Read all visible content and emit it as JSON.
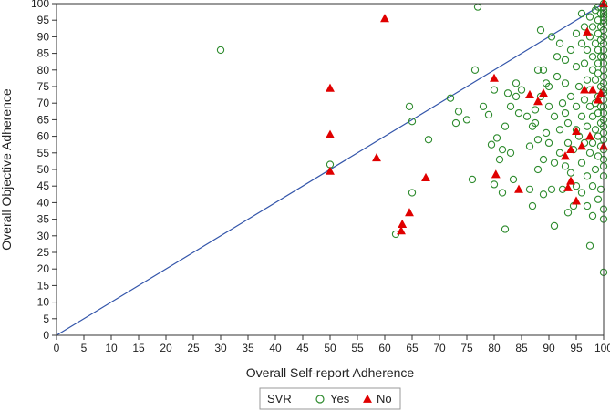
{
  "chart_data": {
    "type": "scatter",
    "xlabel": "Overall Self-report Adherence",
    "ylabel": "Overall Objective Adherence",
    "xlim": [
      0,
      100
    ],
    "ylim": [
      0,
      100
    ],
    "x_ticks": [
      "0",
      "5",
      "10",
      "15",
      "20",
      "25",
      "30",
      "35",
      "40",
      "45",
      "50",
      "55",
      "60",
      "65",
      "70",
      "75",
      "80",
      "85",
      "90",
      "95",
      "100"
    ],
    "y_ticks": [
      "0",
      "5",
      "10",
      "15",
      "20",
      "25",
      "30",
      "35",
      "40",
      "45",
      "50",
      "55",
      "60",
      "65",
      "70",
      "75",
      "80",
      "85",
      "90",
      "95",
      "100"
    ],
    "reference_line": {
      "from": [
        0,
        0
      ],
      "to": [
        100,
        100
      ],
      "color": "#3355aa"
    },
    "legend": {
      "title": "SVR",
      "placement": "bottom-center",
      "entries": [
        {
          "label": "Yes",
          "marker": "open-circle",
          "color": "#2e8b2e"
        },
        {
          "label": "No",
          "marker": "filled-triangle",
          "color": "#e00000"
        }
      ]
    },
    "series": [
      {
        "name": "Yes",
        "marker": "open-circle",
        "color": "#2e8b2e",
        "points": [
          [
            30,
            86
          ],
          [
            50,
            51.5
          ],
          [
            62,
            30.5
          ],
          [
            65,
            43
          ],
          [
            65,
            64.5
          ],
          [
            64.5,
            69
          ],
          [
            68,
            59
          ],
          [
            72,
            71.5
          ],
          [
            73,
            64
          ],
          [
            73.5,
            67.5
          ],
          [
            75,
            65
          ],
          [
            76,
            47
          ],
          [
            76.5,
            80
          ],
          [
            77,
            99
          ],
          [
            78,
            69
          ],
          [
            79,
            66.5
          ],
          [
            79.5,
            57.5
          ],
          [
            80,
            45.5
          ],
          [
            80,
            74
          ],
          [
            80.5,
            59.5
          ],
          [
            81,
            53
          ],
          [
            81.5,
            56
          ],
          [
            81.5,
            43
          ],
          [
            82,
            32
          ],
          [
            82,
            63
          ],
          [
            82.5,
            73
          ],
          [
            83,
            69
          ],
          [
            83,
            55
          ],
          [
            83.5,
            47
          ],
          [
            84,
            72
          ],
          [
            84,
            76
          ],
          [
            84.5,
            67
          ],
          [
            85,
            74
          ],
          [
            86,
            66
          ],
          [
            86.5,
            57
          ],
          [
            86.5,
            44
          ],
          [
            87,
            39
          ],
          [
            87,
            63
          ],
          [
            87.5,
            64
          ],
          [
            87.5,
            68
          ],
          [
            88,
            80
          ],
          [
            88,
            59
          ],
          [
            88.5,
            72
          ],
          [
            88,
            50
          ],
          [
            88.5,
            92
          ],
          [
            89,
            42.5
          ],
          [
            89,
            80
          ],
          [
            89,
            53
          ],
          [
            89.5,
            61
          ],
          [
            89.5,
            76
          ],
          [
            90,
            58
          ],
          [
            90,
            75
          ],
          [
            90,
            69
          ],
          [
            90.5,
            90
          ],
          [
            90.5,
            44
          ],
          [
            91,
            66
          ],
          [
            91,
            33
          ],
          [
            91,
            52
          ],
          [
            91.5,
            84
          ],
          [
            91.5,
            78
          ],
          [
            92,
            55
          ],
          [
            92,
            62
          ],
          [
            92,
            88
          ],
          [
            92.5,
            70
          ],
          [
            92.5,
            44
          ],
          [
            93,
            51
          ],
          [
            93,
            67
          ],
          [
            93,
            76
          ],
          [
            93,
            83
          ],
          [
            93.5,
            37
          ],
          [
            93.5,
            58
          ],
          [
            93.5,
            64
          ],
          [
            94,
            49
          ],
          [
            94,
            86
          ],
          [
            94,
            72
          ],
          [
            94.5,
            39
          ],
          [
            94.5,
            56
          ],
          [
            95,
            91
          ],
          [
            95,
            62
          ],
          [
            95,
            45
          ],
          [
            95,
            81
          ],
          [
            95,
            69
          ],
          [
            95.5,
            60
          ],
          [
            95.5,
            75
          ],
          [
            96,
            88
          ],
          [
            96,
            52
          ],
          [
            96,
            66
          ],
          [
            96,
            43
          ],
          [
            96,
            97
          ],
          [
            96.5,
            58
          ],
          [
            96.5,
            71
          ],
          [
            96.5,
            82
          ],
          [
            96.5,
            93
          ],
          [
            97,
            48
          ],
          [
            97,
            63
          ],
          [
            97,
            77
          ],
          [
            97,
            39
          ],
          [
            97,
            86
          ],
          [
            97.5,
            27
          ],
          [
            97.5,
            55
          ],
          [
            97.5,
            69
          ],
          [
            97.5,
            74
          ],
          [
            97.5,
            90
          ],
          [
            97.5,
            96
          ],
          [
            98,
            36
          ],
          [
            98,
            45
          ],
          [
            98,
            58
          ],
          [
            98,
            66
          ],
          [
            98,
            80
          ],
          [
            98,
            84
          ],
          [
            98,
            93
          ],
          [
            98.5,
            50
          ],
          [
            98.5,
            62
          ],
          [
            98.5,
            70
          ],
          [
            98.5,
            77
          ],
          [
            98.5,
            88
          ],
          [
            98.5,
            98
          ],
          [
            99,
            41
          ],
          [
            99,
            54
          ],
          [
            99,
            60
          ],
          [
            99,
            67
          ],
          [
            99,
            72
          ],
          [
            99,
            79
          ],
          [
            99,
            82
          ],
          [
            99,
            86
          ],
          [
            99,
            91
          ],
          [
            99,
            95
          ],
          [
            99,
            99
          ],
          [
            99.5,
            44
          ],
          [
            99.5,
            57
          ],
          [
            99.5,
            64
          ],
          [
            99.5,
            69
          ],
          [
            99.5,
            75
          ],
          [
            99.5,
            84
          ],
          [
            99.5,
            89
          ],
          [
            99.5,
            93
          ],
          [
            99.5,
            97
          ],
          [
            100,
            19
          ],
          [
            100,
            35
          ],
          [
            100,
            38
          ],
          [
            100,
            48
          ],
          [
            100,
            51
          ],
          [
            100,
            53
          ],
          [
            100,
            56
          ],
          [
            100,
            59
          ],
          [
            100,
            61
          ],
          [
            100,
            63
          ],
          [
            100,
            65
          ],
          [
            100,
            67
          ],
          [
            100,
            69
          ],
          [
            100,
            71
          ],
          [
            100,
            73
          ],
          [
            100,
            74
          ],
          [
            100,
            76
          ],
          [
            100,
            78
          ],
          [
            100,
            80
          ],
          [
            100,
            82
          ],
          [
            100,
            84
          ],
          [
            100,
            86
          ],
          [
            100,
            88
          ],
          [
            100,
            90
          ],
          [
            100,
            92
          ],
          [
            100,
            94
          ],
          [
            100,
            95
          ],
          [
            100,
            96
          ],
          [
            100,
            97
          ],
          [
            100,
            98
          ],
          [
            100,
            99
          ],
          [
            100,
            100
          ]
        ]
      },
      {
        "name": "No",
        "marker": "filled-triangle",
        "color": "#e00000",
        "points": [
          [
            50,
            74.5
          ],
          [
            50,
            60.5
          ],
          [
            50,
            49.5
          ],
          [
            58.5,
            53.5
          ],
          [
            60,
            95.5
          ],
          [
            63,
            31.5
          ],
          [
            63.2,
            33.5
          ],
          [
            64.5,
            37
          ],
          [
            67.5,
            47.5
          ],
          [
            80,
            77.5
          ],
          [
            80.3,
            48.5
          ],
          [
            84.5,
            44
          ],
          [
            86.5,
            72.5
          ],
          [
            88,
            70.5
          ],
          [
            89,
            73
          ],
          [
            93,
            54
          ],
          [
            93.5,
            44.5
          ],
          [
            94,
            46.5
          ],
          [
            94,
            56
          ],
          [
            95,
            40.5
          ],
          [
            95,
            61.5
          ],
          [
            96,
            57
          ],
          [
            96.5,
            74
          ],
          [
            97,
            91.5
          ],
          [
            97.5,
            60
          ],
          [
            98,
            74
          ],
          [
            99,
            71
          ],
          [
            99.5,
            73
          ],
          [
            100,
            57
          ],
          [
            100,
            100
          ]
        ]
      }
    ]
  }
}
